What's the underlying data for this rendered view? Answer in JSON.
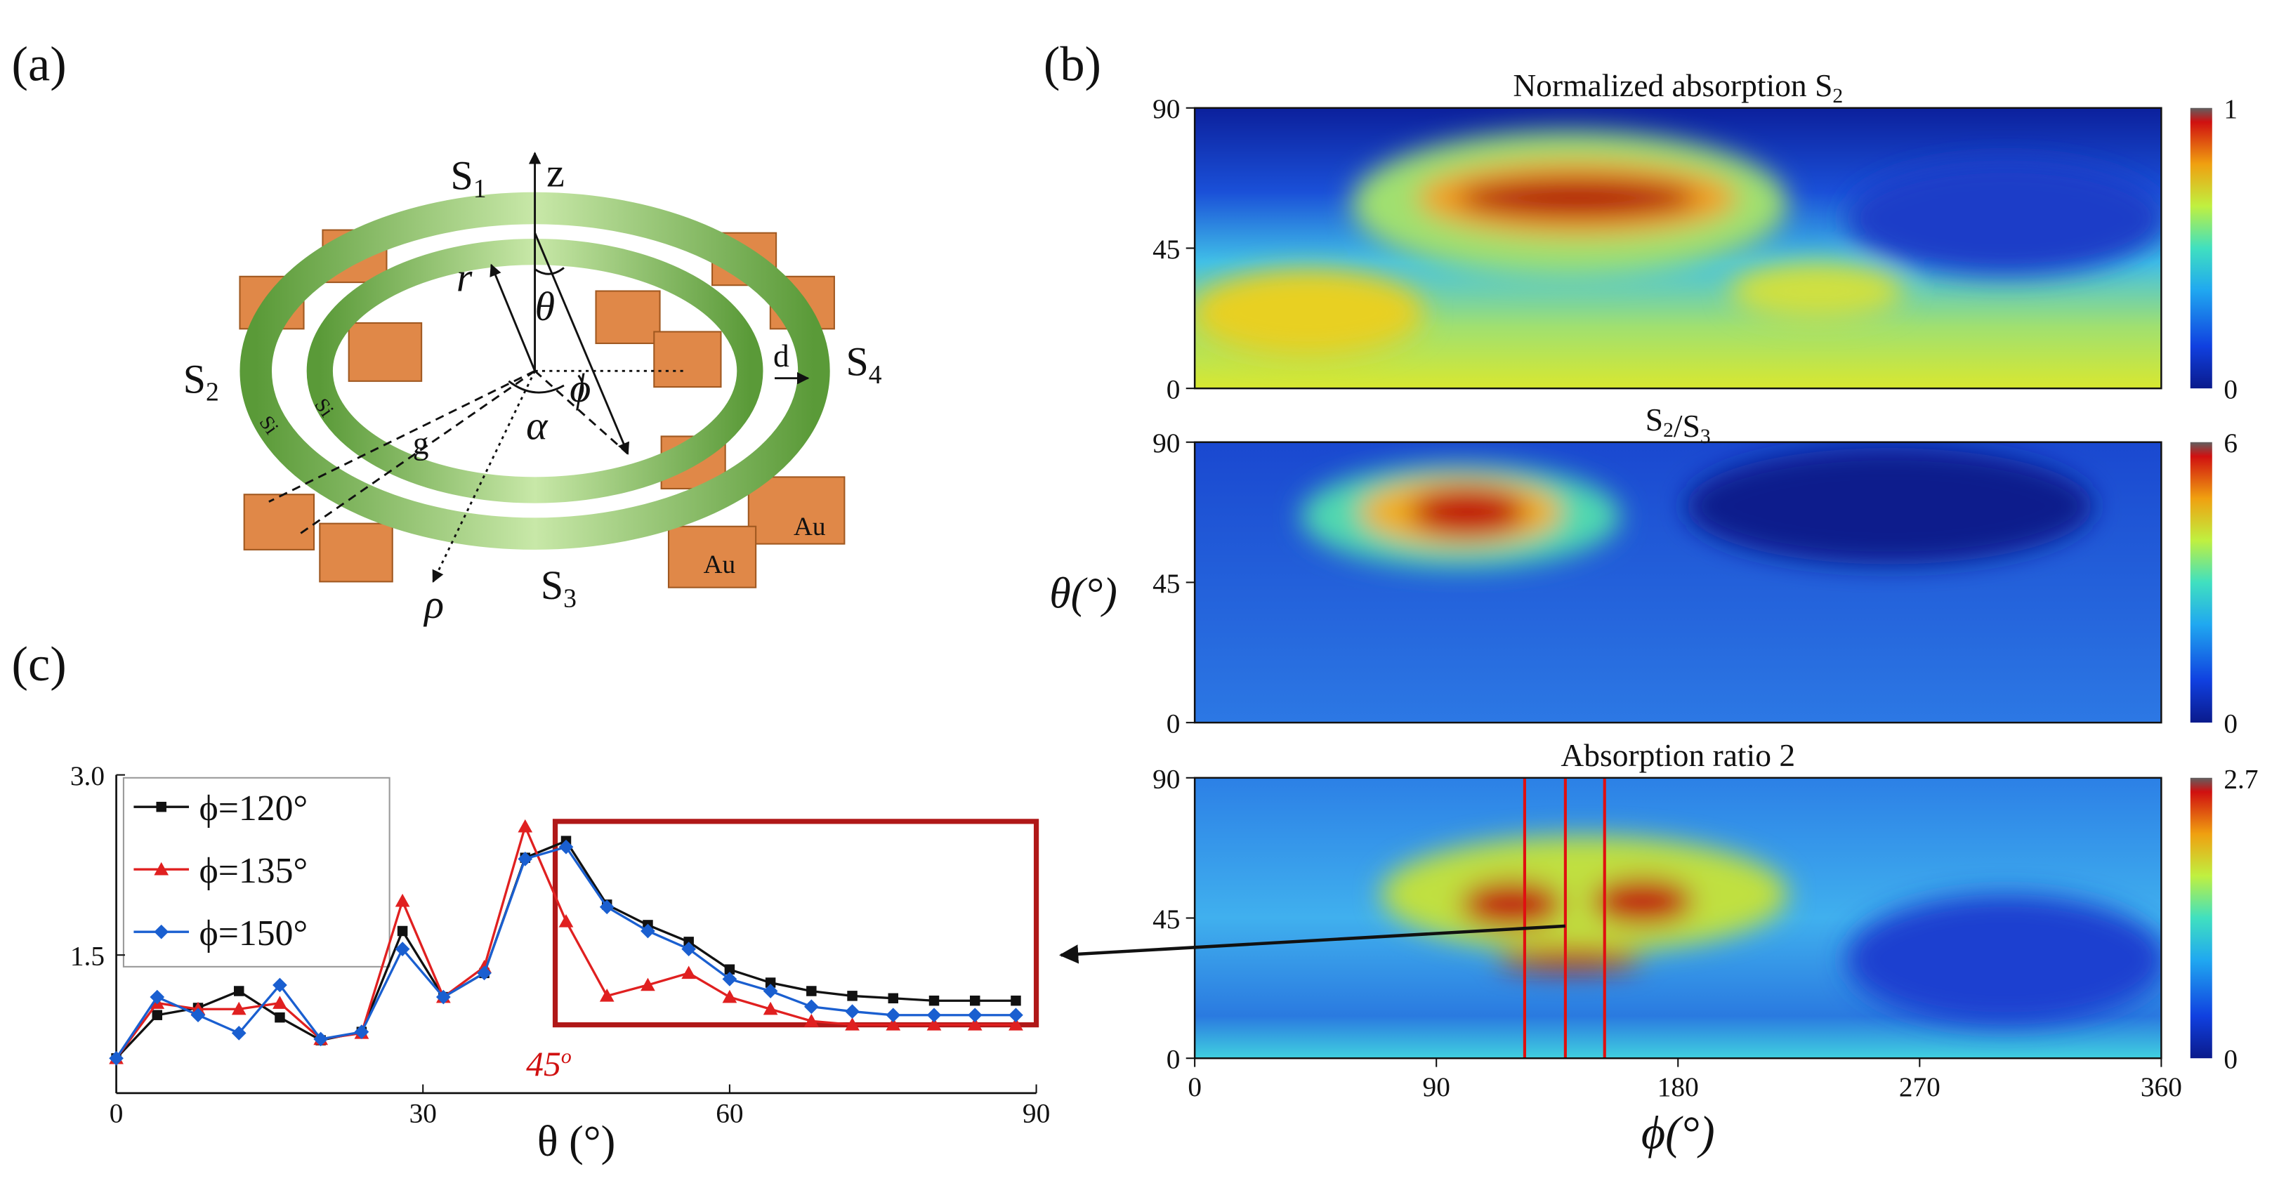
{
  "panel_labels": [
    "(a)",
    "(b)",
    "(c)"
  ],
  "diagram": {
    "rings": [
      {
        "t": "S",
        "sub": "1"
      },
      {
        "t": "S",
        "sub": "2"
      },
      {
        "t": "S",
        "sub": "3"
      },
      {
        "t": "S",
        "sub": "4"
      }
    ],
    "axes": [
      "z",
      "r",
      "θ",
      "ϕ",
      "α",
      "ρ"
    ],
    "dims": [
      "d",
      "g"
    ],
    "materials": [
      "Si",
      "Si",
      "Au",
      "Au"
    ]
  },
  "heatmaps": [
    {
      "title": [
        {
          "t": "Normalized absorption S",
          "sub": "2"
        }
      ],
      "yticks": [
        0,
        45,
        90
      ],
      "ylim": [
        0,
        90
      ],
      "clim": [
        0,
        1
      ],
      "cticks": [
        0,
        1
      ]
    },
    {
      "title": [
        {
          "t": "S",
          "sub": "2"
        },
        {
          "t": "/S",
          "sub": "3"
        }
      ],
      "yticks": [
        0,
        45,
        90
      ],
      "ylim": [
        0,
        90
      ],
      "clim": [
        0,
        6
      ],
      "cticks": [
        0,
        6
      ]
    },
    {
      "title": [
        {
          "t": "Absorption ratio 2"
        }
      ],
      "yticks": [
        0,
        45,
        90
      ],
      "ylim": [
        0,
        90
      ],
      "clim": [
        0,
        2.7
      ],
      "cticks": [
        0,
        2.7
      ]
    }
  ],
  "heatmap_axes": {
    "xlim": [
      0,
      360
    ],
    "xticks": [
      0,
      90,
      180,
      270,
      360
    ],
    "xlabel": "ϕ(°)",
    "ylabel": "θ(°)"
  },
  "chart_data": {
    "type": "line",
    "x": [
      0,
      4,
      8,
      12,
      16,
      20,
      24,
      28,
      32,
      36,
      40,
      44,
      48,
      52,
      56,
      60,
      64,
      68,
      72,
      76,
      80,
      84,
      88
    ],
    "series": [
      {
        "name": "ϕ=120°",
        "color": "#111111",
        "marker": "square",
        "values": [
          0.64,
          1.0,
          1.06,
          1.2,
          0.98,
          0.79,
          0.86,
          1.7,
          1.15,
          1.35,
          2.31,
          2.45,
          1.92,
          1.75,
          1.61,
          1.38,
          1.27,
          1.2,
          1.16,
          1.14,
          1.12,
          1.12,
          1.12
        ]
      },
      {
        "name": "ϕ=135°",
        "color": "#e02020",
        "marker": "triangle",
        "values": [
          0.64,
          1.1,
          1.05,
          1.05,
          1.1,
          0.8,
          0.85,
          1.95,
          1.15,
          1.4,
          2.57,
          1.78,
          1.16,
          1.25,
          1.35,
          1.15,
          1.05,
          0.95,
          0.92,
          0.92,
          0.92,
          0.92,
          0.92
        ]
      },
      {
        "name": "ϕ=150°",
        "color": "#1a5fd0",
        "marker": "diamond",
        "values": [
          0.64,
          1.15,
          1.0,
          0.85,
          1.25,
          0.8,
          0.86,
          1.55,
          1.15,
          1.35,
          2.3,
          2.4,
          1.9,
          1.7,
          1.55,
          1.3,
          1.2,
          1.07,
          1.03,
          1.0,
          1.0,
          1.0,
          1.0
        ]
      }
    ],
    "xlim": [
      0,
      90
    ],
    "xticks": [
      0,
      30,
      60,
      90
    ],
    "ylim": [
      0.35,
      3.0
    ],
    "yticks": [
      {
        "value": 1.5,
        "label": "1.5"
      },
      {
        "value": 3,
        "label": "3.0"
      }
    ],
    "xlabel": "θ (°)",
    "annotation": {
      "t": "45",
      "sup": "o"
    }
  }
}
